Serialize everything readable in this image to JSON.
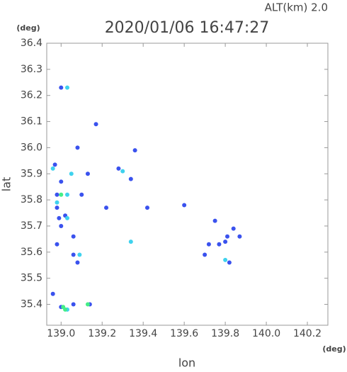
{
  "chart_data": {
    "type": "scatter",
    "title": "2020/01/06 16:47:27",
    "annotation": "ALT(km) 2.0",
    "y_unit": "(deg)",
    "x_unit": "(deg)",
    "xlabel": "lon",
    "ylabel": "lat",
    "xlim": [
      138.93,
      140.3
    ],
    "ylim": [
      35.32,
      36.4
    ],
    "xticks": [
      {
        "value": 139,
        "label": "139.0"
      },
      139.2,
      139.4,
      139.6,
      139.8,
      {
        "value": 140,
        "label": "140.0"
      },
      140.2
    ],
    "yticks": [
      35.4,
      35.5,
      35.6,
      35.7,
      35.8,
      35.9,
      {
        "value": 36,
        "label": "36.0"
      },
      36.1,
      36.2,
      36.3,
      36.4
    ],
    "series": [
      {
        "color": "#3a52ee",
        "x": [
          139.0,
          138.97,
          139.0,
          138.98,
          138.98,
          138.99,
          139.0,
          139.02,
          138.98,
          139.06,
          139.06,
          139.08,
          139.0,
          139.06,
          139.14,
          138.96,
          139.13,
          139.1,
          139.08,
          139.17,
          139.6,
          139.72,
          139.77,
          139.8,
          139.81,
          139.84,
          139.87,
          139.82,
          139.75,
          139.7,
          139.42,
          139.22,
          139.34,
          139.36,
          139.28
        ],
        "y": [
          36.23,
          35.935,
          35.87,
          35.82,
          35.77,
          35.73,
          35.7,
          35.74,
          35.63,
          35.66,
          35.59,
          35.56,
          35.39,
          35.4,
          35.4,
          35.44,
          35.9,
          35.82,
          36.0,
          36.09,
          35.78,
          35.63,
          35.63,
          35.64,
          35.66,
          35.69,
          35.66,
          35.56,
          35.72,
          35.59,
          35.77,
          35.77,
          35.88,
          35.99,
          35.92
        ]
      },
      {
        "color": "#3fd2ee",
        "x": [
          139.03,
          138.96,
          139.05,
          139.03,
          138.98,
          139.03,
          139.09,
          139.8,
          139.3,
          139.34,
          139.03
        ],
        "y": [
          36.23,
          35.92,
          35.9,
          35.82,
          35.79,
          35.73,
          35.59,
          35.57,
          35.91,
          35.64,
          35.38
        ]
      },
      {
        "color": "#44ee88",
        "x": [
          139.02,
          139.13,
          139.01,
          139.0
        ],
        "y": [
          35.38,
          35.4,
          35.39,
          35.82
        ]
      }
    ]
  }
}
